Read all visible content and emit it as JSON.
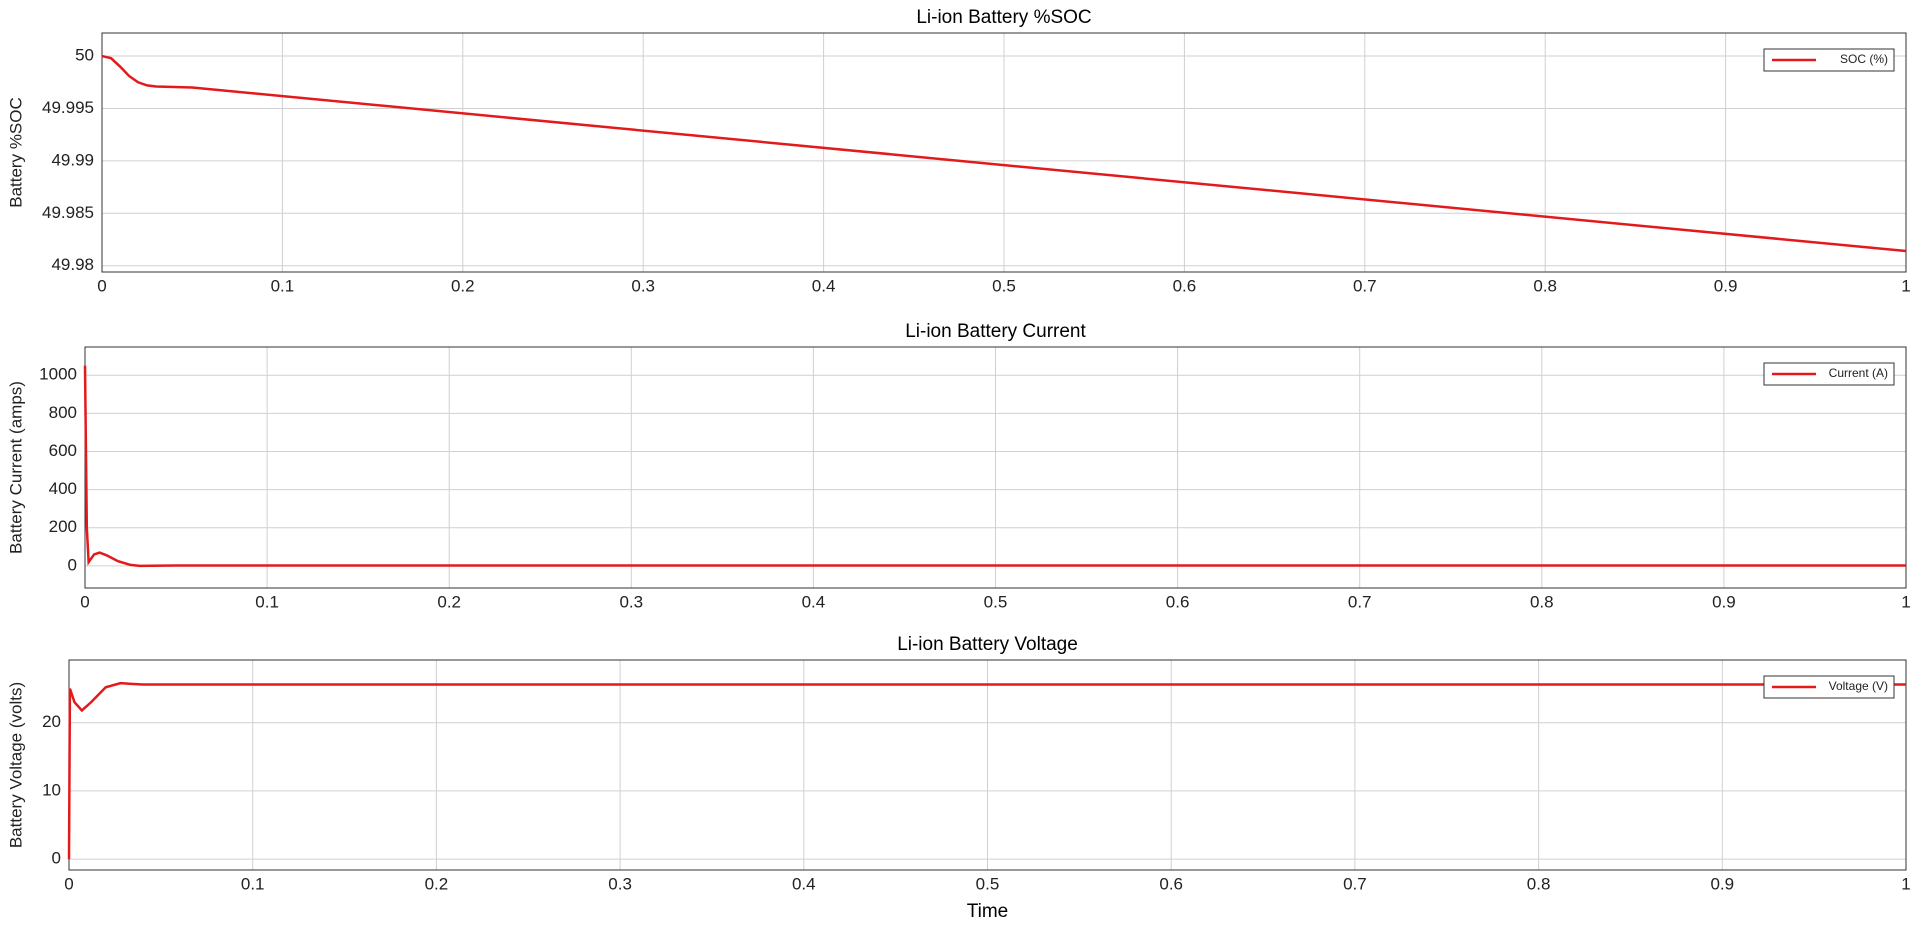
{
  "chart_data": [
    {
      "type": "line",
      "title": "Li-ion Battery %SOC",
      "ylabel": "Battery %SOC",
      "x": [
        0,
        0.005,
        0.01,
        0.015,
        0.02,
        0.025,
        0.03,
        0.05,
        0.5,
        1
      ],
      "series": [
        {
          "name": "SOC (%)",
          "color": "#e31a1c",
          "values": [
            50,
            49.9998,
            49.999,
            49.9981,
            49.9975,
            49.9972,
            49.9971,
            49.997,
            49.9896,
            49.9814
          ]
        }
      ],
      "xlim": [
        0,
        1
      ],
      "ylim": [
        49.9794,
        50.0022
      ],
      "xticks": [
        0,
        0.1,
        0.2,
        0.3,
        0.4,
        0.5,
        0.6,
        0.7,
        0.8,
        0.9,
        1
      ],
      "yticks": [
        49.98,
        49.985,
        49.99,
        49.995,
        50
      ],
      "grid": true,
      "legend": "upper-right"
    },
    {
      "type": "line",
      "title": "Li-ion Battery Current",
      "ylabel": "Battery Current (amps)",
      "x": [
        0,
        0.001,
        0.002,
        0.005,
        0.008,
        0.012,
        0.018,
        0.025,
        0.03,
        0.05,
        1
      ],
      "series": [
        {
          "name": "Current (A)",
          "color": "#e31a1c",
          "values": [
            1050,
            200,
            20,
            60,
            70,
            55,
            25,
            5,
            0,
            2,
            2
          ]
        }
      ],
      "xlim": [
        0,
        1
      ],
      "ylim": [
        -116,
        1148
      ],
      "xticks": [
        0,
        0.1,
        0.2,
        0.3,
        0.4,
        0.5,
        0.6,
        0.7,
        0.8,
        0.9,
        1
      ],
      "yticks": [
        0,
        200,
        400,
        600,
        800,
        1000
      ],
      "grid": true,
      "legend": "upper-right"
    },
    {
      "type": "line",
      "title": "Li-ion Battery Voltage",
      "ylabel": "Battery Voltage (volts)",
      "xlabel": "Time",
      "x": [
        0,
        0.0005,
        0.003,
        0.007,
        0.012,
        0.02,
        0.028,
        0.04,
        1
      ],
      "series": [
        {
          "name": "Voltage (V)",
          "color": "#e31a1c",
          "values": [
            0,
            25,
            23,
            21.8,
            23,
            25.2,
            25.8,
            25.6,
            25.6
          ]
        }
      ],
      "xlim": [
        0,
        1
      ],
      "ylim": [
        -1.6,
        29.2
      ],
      "xticks": [
        0,
        0.1,
        0.2,
        0.3,
        0.4,
        0.5,
        0.6,
        0.7,
        0.8,
        0.9,
        1
      ],
      "yticks": [
        0,
        10,
        20
      ],
      "grid": true,
      "legend": "upper-right"
    }
  ]
}
